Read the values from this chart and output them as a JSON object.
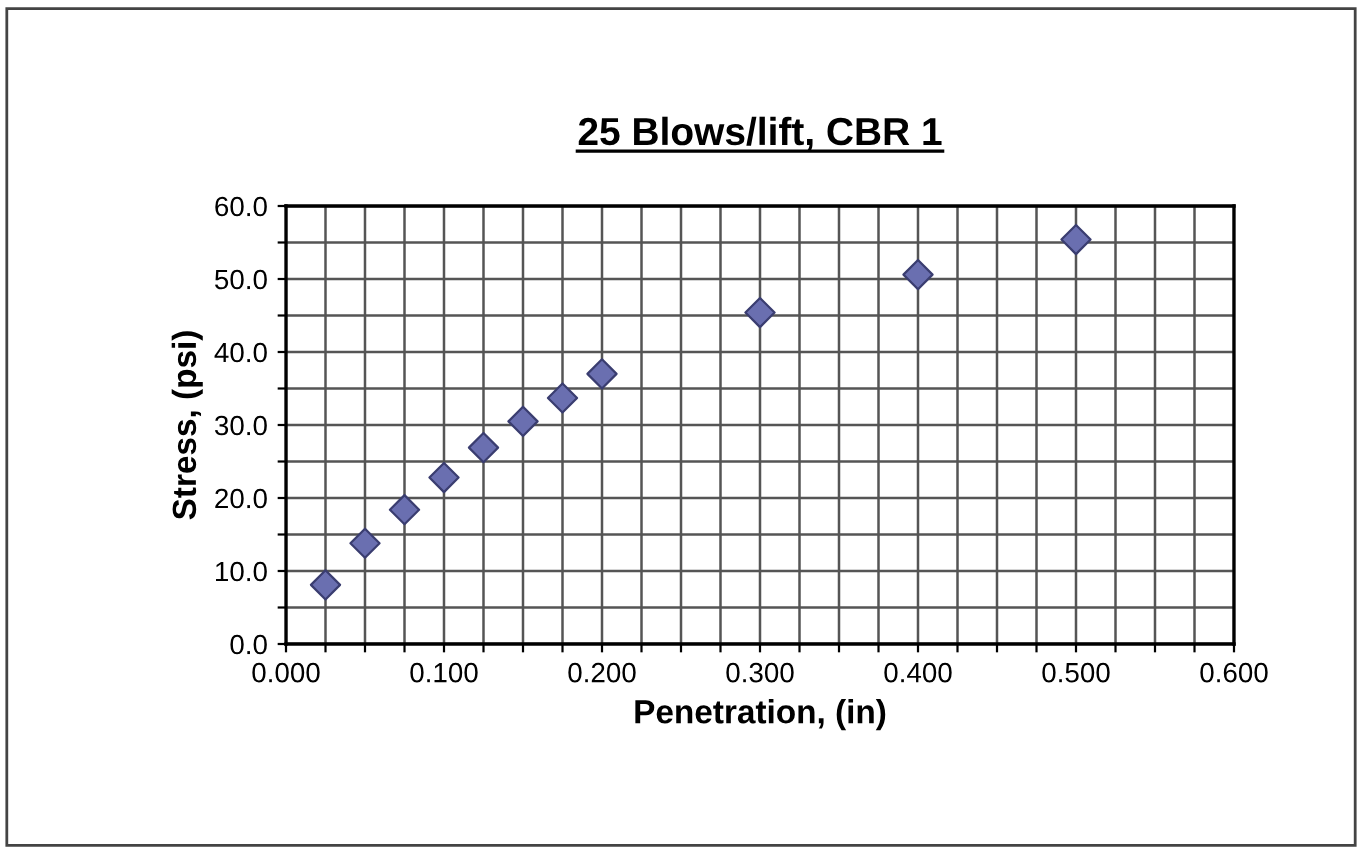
{
  "chart_data": {
    "type": "scatter",
    "title": "25 Blows/lift, CBR 1",
    "xlabel": "Penetration, (in)",
    "ylabel": "Stress, (psi)",
    "x": [
      0.025,
      0.05,
      0.075,
      0.1,
      0.125,
      0.15,
      0.175,
      0.2,
      0.3,
      0.4,
      0.5
    ],
    "series": [
      {
        "color": "#6a6fb0",
        "values": [
          8.1,
          13.8,
          18.4,
          22.8,
          26.9,
          30.5,
          33.7,
          37.0,
          45.4,
          50.6,
          55.4
        ]
      }
    ],
    "marker": "diamond",
    "grid": true,
    "legend": false,
    "xlim": [
      0,
      0.6
    ],
    "ylim": [
      0,
      60
    ],
    "xticks": [
      {
        "value": 0,
        "label": "0.000"
      },
      {
        "value": 0.025,
        "label": null
      },
      {
        "value": 0.05,
        "label": null
      },
      {
        "value": 0.075,
        "label": null
      },
      {
        "value": 0.1,
        "label": "0.100"
      },
      {
        "value": 0.125,
        "label": null
      },
      {
        "value": 0.15,
        "label": null
      },
      {
        "value": 0.175,
        "label": null
      },
      {
        "value": 0.2,
        "label": "0.200"
      },
      {
        "value": 0.225,
        "label": null
      },
      {
        "value": 0.25,
        "label": null
      },
      {
        "value": 0.275,
        "label": null
      },
      {
        "value": 0.3,
        "label": "0.300"
      },
      {
        "value": 0.325,
        "label": null
      },
      {
        "value": 0.35,
        "label": null
      },
      {
        "value": 0.375,
        "label": null
      },
      {
        "value": 0.4,
        "label": "0.400"
      },
      {
        "value": 0.425,
        "label": null
      },
      {
        "value": 0.45,
        "label": null
      },
      {
        "value": 0.475,
        "label": null
      },
      {
        "value": 0.5,
        "label": "0.500"
      },
      {
        "value": 0.525,
        "label": null
      },
      {
        "value": 0.55,
        "label": null
      },
      {
        "value": 0.575,
        "label": null
      },
      {
        "value": 0.6,
        "label": "0.600"
      }
    ],
    "yticks": [
      {
        "value": 0,
        "label": "0.0"
      },
      {
        "value": 5,
        "label": null
      },
      {
        "value": 10,
        "label": "10.0"
      },
      {
        "value": 15,
        "label": null
      },
      {
        "value": 20,
        "label": "20.0"
      },
      {
        "value": 25,
        "label": null
      },
      {
        "value": 30,
        "label": "30.0"
      },
      {
        "value": 35,
        "label": null
      },
      {
        "value": 40,
        "label": "40.0"
      },
      {
        "value": 45,
        "label": null
      },
      {
        "value": 50,
        "label": "50.0"
      },
      {
        "value": 55,
        "label": null
      },
      {
        "value": 60,
        "label": "60.0"
      }
    ]
  }
}
